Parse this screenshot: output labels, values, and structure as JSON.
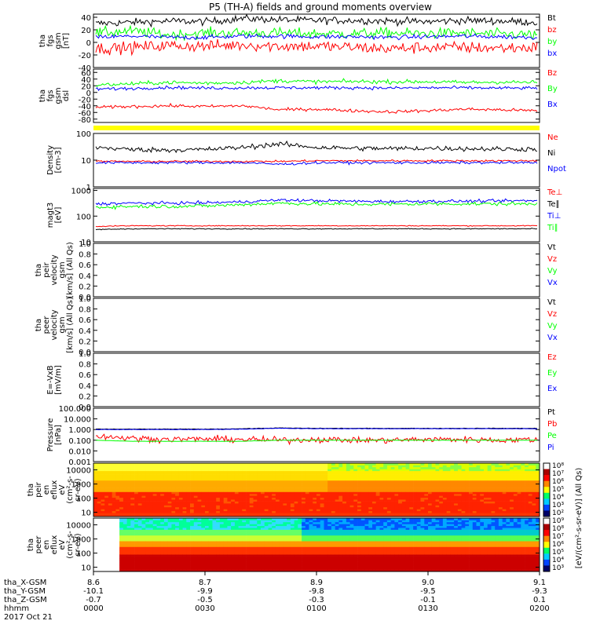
{
  "title": "P5 (TH-A) fields and ground moments overview",
  "colors": {
    "black": "#000000",
    "red": "#ff0000",
    "green": "#00ff00",
    "blue": "#0000ff",
    "yellow": "#ffff00"
  },
  "chart_data": {
    "type": "line",
    "time_axis": {
      "range_hhmm": [
        "0000",
        "0200"
      ],
      "ticks_hhmm": [
        "0000",
        "0030",
        "0100",
        "0130",
        "0200"
      ],
      "row_labels": [
        "tha_X-GSM",
        "tha_Y-GSM",
        "tha_Z-GSM",
        "hhmm",
        "2017 Oct 21"
      ],
      "x_gsm": [
        "8.6",
        "8.7",
        "8.9",
        "9.0",
        "9.1"
      ],
      "y_gsm": [
        "-10.1",
        "-9.9",
        "-9.8",
        "-9.5",
        "-9.3"
      ],
      "z_gsm": [
        "-0.7",
        "-0.5",
        "-0.3",
        "-0.1",
        "0.1"
      ]
    },
    "panels": [
      {
        "ylabel": [
          "tha",
          "fgs",
          "gsm",
          "[nT]"
        ],
        "scale": "linear",
        "ylim": [
          -40,
          45
        ],
        "ticks": [
          "40",
          "20",
          "0",
          "-20",
          "-40"
        ],
        "legend": [
          "Bt",
          "bz",
          "by",
          "bx"
        ],
        "legend_colors": [
          "black",
          "red",
          "green",
          "blue"
        ],
        "series": [
          {
            "name": "Bt",
            "base": [
              30,
              32,
              34,
              33,
              38,
              36,
              35,
              35,
              34,
              33,
              35,
              34,
              32
            ],
            "noise": 5
          },
          {
            "name": "by",
            "base": [
              15,
              18,
              12,
              15,
              15,
              15,
              14,
              14,
              15,
              14,
              15,
              13,
              12
            ],
            "noise": 7
          },
          {
            "name": "bx",
            "base": [
              8,
              10,
              8,
              8,
              10,
              10,
              9,
              9,
              8,
              9,
              10,
              9,
              8
            ],
            "noise": 3
          },
          {
            "name": "bz",
            "base": [
              -10,
              -8,
              -5,
              -6,
              -4,
              -6,
              -6,
              -8,
              -10,
              -8,
              -8,
              -9,
              -8
            ],
            "noise": 8
          }
        ]
      },
      {
        "ylabel": [
          "tha",
          "fgs",
          "gsm",
          "dsl"
        ],
        "scale": "linear",
        "ylim": [
          -90,
          70
        ],
        "ticks": [
          "60",
          "40",
          "20",
          "0",
          "-20",
          "-40",
          "-60",
          "-80"
        ],
        "legend": [
          "Bz",
          "By",
          "Bx"
        ],
        "legend_colors": [
          "red",
          "green",
          "blue"
        ],
        "series": [
          {
            "name": "By",
            "base": [
              22,
              26,
              30,
              28,
              30,
              35,
              32,
              33,
              32,
              32,
              30,
              31,
              30
            ],
            "noise": 5
          },
          {
            "name": "Bx",
            "base": [
              10,
              12,
              15,
              13,
              14,
              14,
              14,
              14,
              13,
              14,
              14,
              13,
              13
            ],
            "noise": 4
          },
          {
            "name": "Bz",
            "base": [
              -45,
              -42,
              -40,
              -42,
              -40,
              -52,
              -50,
              -55,
              -58,
              -55,
              -50,
              -52,
              -55
            ],
            "noise": 4
          }
        ]
      },
      {
        "type": "bar-flag",
        "ylabel": [],
        "legend": [],
        "legend_colors": []
      },
      {
        "ylabel": [
          "Density",
          "[cm-3]"
        ],
        "scale": "log",
        "ylim": [
          1,
          100
        ],
        "ticks": [
          "100",
          "10",
          "1"
        ],
        "legend": [
          "Ne",
          "Ni",
          "Npot"
        ],
        "legend_colors": [
          "red",
          "black",
          "blue"
        ],
        "series": [
          {
            "name": "Ni",
            "base": [
              30,
              25,
              24,
              25,
              30,
              40,
              30,
              28,
              27,
              28,
              27,
              26,
              26
            ],
            "noise": 0.08
          },
          {
            "name": "Ne",
            "base": [
              9,
              9,
              9,
              9,
              9,
              9,
              9.5,
              9.5,
              9.5,
              9.5,
              9.5,
              9.5,
              9.5
            ],
            "noise": 0.03
          },
          {
            "name": "Npot",
            "base": [
              8,
              8,
              8,
              8,
              8,
              7,
              8,
              8,
              8,
              8,
              8,
              8,
              8
            ],
            "noise": 0.04
          }
        ]
      },
      {
        "ylabel": [
          "magt3",
          "[eV]"
        ],
        "scale": "log",
        "ylim": [
          10,
          1200
        ],
        "ticks": [
          "1000",
          "100",
          "10"
        ],
        "legend": [
          "Te⊥",
          "Te∥",
          "Ti⊥",
          "Ti∥"
        ],
        "legend_colors": [
          "red",
          "black",
          "blue",
          "green"
        ],
        "series": [
          {
            "name": "Ti⊥",
            "base": [
              300,
              320,
              320,
              330,
              360,
              420,
              400,
              380,
              370,
              380,
              380,
              390,
              400
            ],
            "noise": 0.05
          },
          {
            "name": "Ti∥",
            "base": [
              220,
              240,
              240,
              250,
              280,
              320,
              300,
              290,
              290,
              300,
              300,
              300,
              300
            ],
            "noise": 0.06
          },
          {
            "name": "Te⊥",
            "base": [
              40,
              42,
              42,
              42,
              42,
              42,
              42,
              42,
              42,
              42,
              42,
              42,
              42
            ],
            "noise": 0.015
          },
          {
            "name": "Te∥",
            "base": [
              30,
              32,
              32,
              32,
              32,
              32,
              32,
              32,
              32,
              32,
              32,
              32,
              32
            ],
            "noise": 0.015
          }
        ]
      },
      {
        "ylabel": [
          "tha",
          "peir",
          "velocity",
          "gsm",
          "[km/s] (All Qs)"
        ],
        "scale": "linear",
        "ylim": [
          0,
          1
        ],
        "ticks": [
          "1.0",
          "0.8",
          "0.6",
          "0.4",
          "0.2",
          "0.0"
        ],
        "legend": [
          "Vt",
          "Vz",
          "Vy",
          "Vx"
        ],
        "legend_colors": [
          "black",
          "red",
          "green",
          "blue"
        ],
        "series": []
      },
      {
        "ylabel": [
          "tha",
          "peer",
          "velocity",
          "gsm",
          "[km/s] (All Qs)"
        ],
        "scale": "linear",
        "ylim": [
          0,
          1
        ],
        "ticks": [
          "1.0",
          "0.8",
          "0.6",
          "0.4",
          "0.2",
          "0.0"
        ],
        "legend": [
          "Vt",
          "Vz",
          "Vy",
          "Vx"
        ],
        "legend_colors": [
          "black",
          "red",
          "green",
          "blue"
        ],
        "series": []
      },
      {
        "ylabel": [
          "E=-VxB",
          "[mV/m]"
        ],
        "scale": "linear",
        "ylim": [
          0,
          1
        ],
        "ticks": [
          "1.0",
          "0.8",
          "0.6",
          "0.4",
          "0.2",
          "0.0"
        ],
        "legend": [
          "Ez",
          "Ey",
          "Ex"
        ],
        "legend_colors": [
          "red",
          "green",
          "blue"
        ],
        "series": []
      },
      {
        "ylabel": [
          "Pressure",
          "[nPa]"
        ],
        "scale": "log",
        "ylim": [
          0.001,
          100
        ],
        "ticks": [
          "100.000",
          "10.000",
          "1.000",
          "0.100",
          "0.010",
          "0.001"
        ],
        "legend": [
          "Pt",
          "Pb",
          "Pe",
          "Pi"
        ],
        "legend_colors": [
          "black",
          "red",
          "green",
          "blue"
        ],
        "series": [
          {
            "name": "Pt",
            "base": [
              1.1,
              1.1,
              1.1,
              1.1,
              1.2,
              1.4,
              1.3,
              1.3,
              1.3,
              1.3,
              1.3,
              1.3,
              1.3
            ],
            "noise": 0.02
          },
          {
            "name": "Pi",
            "base": [
              1.0,
              1.0,
              1.0,
              1.0,
              1.1,
              1.3,
              1.2,
              1.2,
              1.2,
              1.2,
              1.2,
              1.2,
              1.2
            ],
            "noise": 0.02
          },
          {
            "name": "Pb",
            "base": [
              0.25,
              0.15,
              0.12,
              0.13,
              0.12,
              0.1,
              0.12,
              0.1,
              0.1,
              0.12,
              0.12,
              0.1,
              0.12
            ],
            "noise": 0.25
          },
          {
            "name": "Pe",
            "base": [
              0.1,
              0.08,
              0.08,
              0.08,
              0.08,
              0.1,
              0.1,
              0.1,
              0.1,
              0.1,
              0.1,
              0.1,
              0.1
            ],
            "noise": 0.01
          }
        ]
      },
      {
        "type": "spectrogram",
        "ylabel": [
          "tha",
          "peir",
          "en",
          "eflux",
          "eV",
          "(cm²-s-",
          "sr-eV)"
        ],
        "scale": "log",
        "ylim": [
          5,
          30000
        ],
        "ticks": [
          "10000",
          "1000",
          "100",
          "10"
        ],
        "legend": [],
        "legend_colors": []
      },
      {
        "type": "spectrogram",
        "ylabel": [
          "tha",
          "peer",
          "en",
          "eflux",
          "eV",
          "(cm²-s-",
          "sr-eV)"
        ],
        "scale": "log",
        "ylim": [
          5,
          30000
        ],
        "ticks": [
          "10000",
          "1000",
          "100",
          "10"
        ],
        "legend": [],
        "legend_colors": []
      }
    ],
    "colorbar": {
      "label": "[eV/(cm²-s-sr-eV)] (All Qs)",
      "ticks_upper": [
        "10⁸",
        "10⁷",
        "10⁶",
        "10⁵",
        "10⁴",
        "10³",
        "10²"
      ],
      "ticks_lower": [
        "10⁹",
        "10⁸",
        "10⁷",
        "10⁶",
        "10⁵",
        "10⁴",
        "10³"
      ]
    }
  }
}
